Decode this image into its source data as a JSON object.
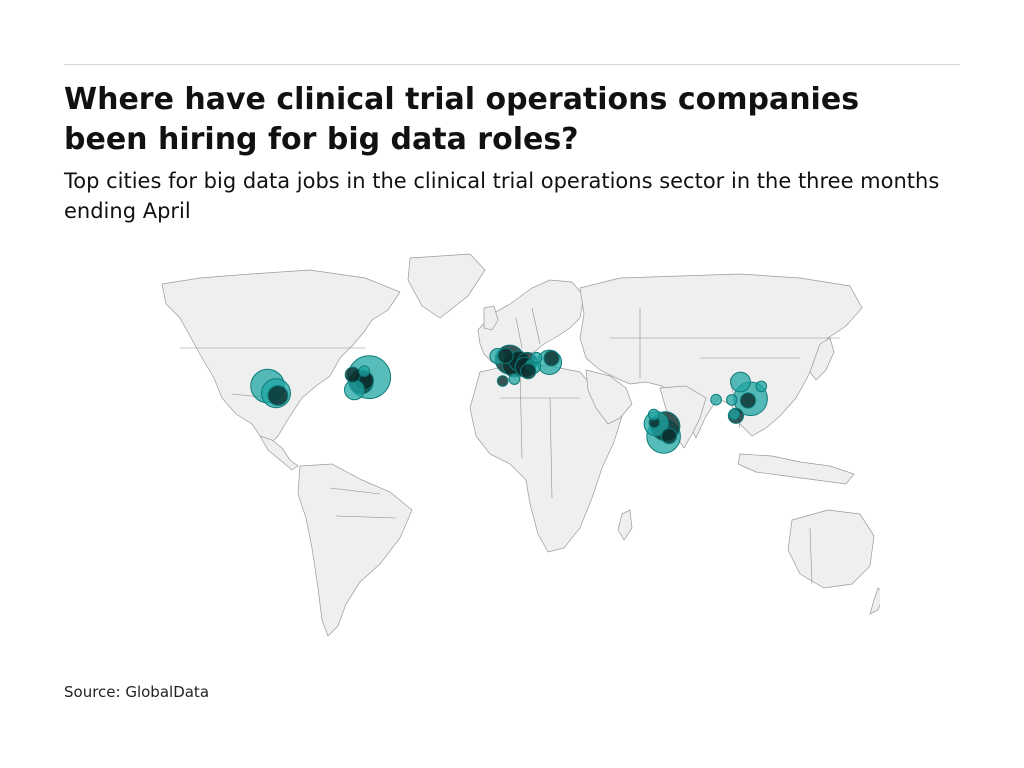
{
  "title": "Where have clinical trial operations companies been hiring for big data roles?",
  "subtitle": "Top cities for big data jobs in the clinical trial operations sector in the three months ending April",
  "source": "Source: GlobalData",
  "colors": {
    "bubble": "#1fa6a3",
    "bubble_dark": "#0a2c2c",
    "land": "#efefef",
    "border": "#9a9a9a",
    "rule": "#d6d6d6"
  },
  "cities": [
    {
      "lon": -122.4,
      "lat": 37.8,
      "size": 6,
      "dark": false
    },
    {
      "lon": -118.2,
      "lat": 34.1,
      "size": 5,
      "dark": false
    },
    {
      "lon": -117.2,
      "lat": 32.9,
      "size": 3,
      "dark": true
    },
    {
      "lon": -71.1,
      "lat": 42.4,
      "size": 8,
      "dark": false
    },
    {
      "lon": -75.2,
      "lat": 40.0,
      "size": 4,
      "dark": true
    },
    {
      "lon": -74.0,
      "lat": 40.7,
      "size": 3,
      "dark": true
    },
    {
      "lon": -79.4,
      "lat": 43.7,
      "size": 2,
      "dark": true
    },
    {
      "lon": -78.6,
      "lat": 35.8,
      "size": 3,
      "dark": false
    },
    {
      "lon": -73.6,
      "lat": 45.5,
      "size": 1,
      "dark": false
    },
    {
      "lon": -0.1,
      "lat": 51.5,
      "size": 5,
      "dark": true
    },
    {
      "lon": -6.3,
      "lat": 53.3,
      "size": 2,
      "dark": false
    },
    {
      "lon": -2.2,
      "lat": 53.5,
      "size": 2,
      "dark": true
    },
    {
      "lon": 2.3,
      "lat": 48.9,
      "size": 4,
      "dark": true
    },
    {
      "lon": 4.4,
      "lat": 50.8,
      "size": 3,
      "dark": true
    },
    {
      "lon": 8.7,
      "lat": 50.1,
      "size": 3,
      "dark": true
    },
    {
      "lon": 7.6,
      "lat": 47.6,
      "size": 3,
      "dark": true
    },
    {
      "lon": 11.6,
      "lat": 48.1,
      "size": 2,
      "dark": false
    },
    {
      "lon": 9.2,
      "lat": 45.5,
      "size": 2,
      "dark": true
    },
    {
      "lon": 13.4,
      "lat": 52.5,
      "size": 1,
      "dark": false
    },
    {
      "lon": 19.9,
      "lat": 50.1,
      "size": 4,
      "dark": false
    },
    {
      "lon": 21.0,
      "lat": 52.2,
      "size": 2,
      "dark": true
    },
    {
      "lon": -3.7,
      "lat": 40.4,
      "size": 1,
      "dark": true
    },
    {
      "lon": 2.2,
      "lat": 41.4,
      "size": 1,
      "dark": false
    },
    {
      "lon": 72.9,
      "lat": 19.1,
      "size": 1,
      "dark": true
    },
    {
      "lon": 73.9,
      "lat": 18.5,
      "size": 4,
      "dark": false
    },
    {
      "lon": 77.6,
      "lat": 13.0,
      "size": 6,
      "dark": false
    },
    {
      "lon": 78.5,
      "lat": 17.4,
      "size": 5,
      "dark": true
    },
    {
      "lon": 80.3,
      "lat": 13.1,
      "size": 2,
      "dark": true
    },
    {
      "lon": 72.6,
      "lat": 23.0,
      "size": 1,
      "dark": false
    },
    {
      "lon": 116.4,
      "lat": 39.9,
      "size": 3,
      "dark": false
    },
    {
      "lon": 121.5,
      "lat": 31.2,
      "size": 6,
      "dark": false
    },
    {
      "lon": 120.2,
      "lat": 30.3,
      "size": 2,
      "dark": true
    },
    {
      "lon": 104.1,
      "lat": 30.7,
      "size": 1,
      "dark": false
    },
    {
      "lon": 114.1,
      "lat": 22.4,
      "size": 2,
      "dark": true
    },
    {
      "lon": 113.3,
      "lat": 23.1,
      "size": 1,
      "dark": false
    },
    {
      "lon": 112.0,
      "lat": 30.6,
      "size": 1,
      "dark": false
    },
    {
      "lon": 126.9,
      "lat": 37.6,
      "size": 1,
      "dark": false
    }
  ]
}
